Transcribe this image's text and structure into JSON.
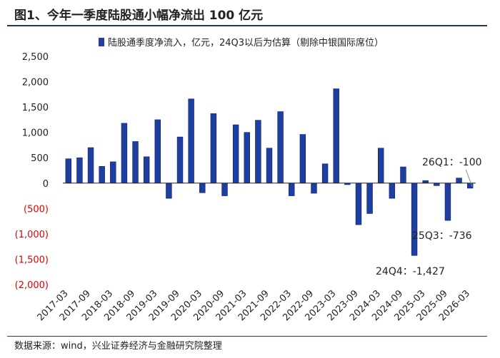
{
  "title": "图1、今年一季度陆股通小幅净流出 100 亿元",
  "source": "数据来源：wind，兴业证券经济与金融研究院整理",
  "colors": {
    "bar": "#1f3fa0",
    "bar_stroke": "#0d1f66",
    "negative_tick": "#e00000",
    "rule": "#1f3864"
  },
  "chart_data": {
    "type": "bar",
    "legend": "陆股通季度净流入，亿元，24Q3以后为估算（剔除中银国际席位）",
    "legend_position": "top",
    "ylim": [
      -2000,
      2500
    ],
    "yticks": [
      2500,
      2000,
      1500,
      1000,
      500,
      0,
      -500,
      -1000,
      -1500,
      -2000
    ],
    "ytick_labels": [
      "2,500",
      "2,000",
      "1,500",
      "1,000",
      "500",
      "0",
      "(500)",
      "(1,000)",
      "(1,500)",
      "(2,000)"
    ],
    "xtick_labels": [
      "2017-03",
      "2017-09",
      "2018-03",
      "2018-09",
      "2019-03",
      "2019-09",
      "2020-03",
      "2020-09",
      "2021-03",
      "2021-09",
      "2022-03",
      "2022-09",
      "2023-03",
      "2023-09",
      "2024-03",
      "2024-09",
      "2025-03",
      "2025-09",
      "2026-03"
    ],
    "categories": [
      "2017-03",
      "2017-06",
      "2017-09",
      "2017-12",
      "2018-03",
      "2018-06",
      "2018-09",
      "2018-12",
      "2019-03",
      "2019-06",
      "2019-09",
      "2019-12",
      "2020-03",
      "2020-06",
      "2020-09",
      "2020-12",
      "2021-03",
      "2021-06",
      "2021-09",
      "2021-12",
      "2022-03",
      "2022-06",
      "2022-09",
      "2022-12",
      "2023-03",
      "2023-06",
      "2023-09",
      "2023-12",
      "2024-03",
      "2024-06",
      "2024-09",
      "2024-12",
      "2025-03",
      "2025-06",
      "2025-09",
      "2025-12",
      "2026-03"
    ],
    "values": [
      480,
      500,
      700,
      330,
      420,
      1180,
      820,
      520,
      1250,
      -300,
      910,
      1660,
      -190,
      1370,
      -250,
      1150,
      1000,
      1240,
      690,
      1410,
      -250,
      960,
      -200,
      380,
      1860,
      -30,
      -820,
      -600,
      690,
      -300,
      320,
      -1427,
      50,
      -50,
      -736,
      100,
      -100
    ],
    "annotations": [
      {
        "label": "26Q1：-100",
        "category": "2026-03"
      },
      {
        "label": "25Q3：-736",
        "category": "2025-09"
      },
      {
        "label": "24Q4：-1,427",
        "category": "2024-12"
      }
    ]
  }
}
